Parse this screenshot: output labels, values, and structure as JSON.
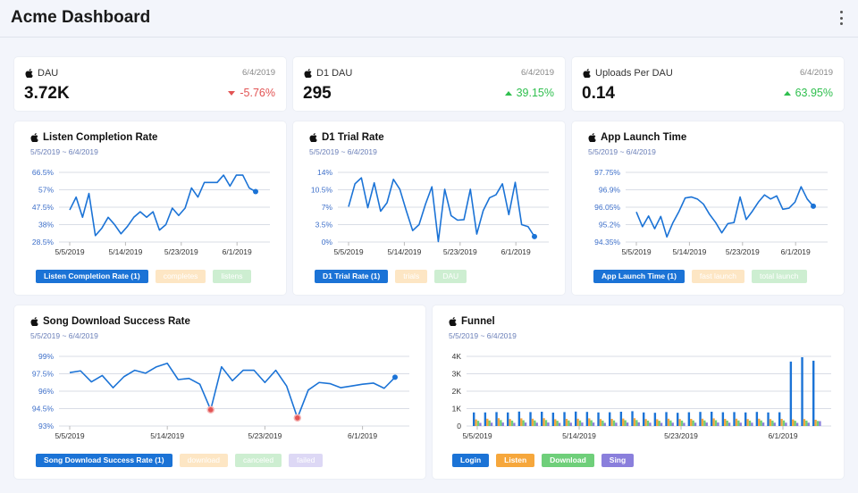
{
  "header": {
    "title": "Acme Dashboard"
  },
  "kpis": [
    {
      "title": "DAU",
      "date": "6/4/2019",
      "value": "3.72K",
      "change": "-5.76%",
      "direction": "down"
    },
    {
      "title": "D1 DAU",
      "date": "6/4/2019",
      "value": "295",
      "change": "39.15%",
      "direction": "up"
    },
    {
      "title": "Uploads Per DAU",
      "date": "6/4/2019",
      "value": "0.14",
      "change": "63.95%",
      "direction": "up"
    }
  ],
  "colors": {
    "blue": "#1b73d6",
    "red": "#e25454",
    "green": "#2fbf4e",
    "orange": "#f6a73c",
    "lightgreen": "#6fcf7a",
    "purple": "#8a7fdc"
  },
  "charts": {
    "listen": {
      "title": "Listen Completion Rate",
      "range": "5/5/2019 ~ 6/4/2019",
      "legend": [
        "Listen Completion Rate (1)",
        "completes",
        "listens"
      ]
    },
    "trial": {
      "title": "D1 Trial Rate",
      "range": "5/5/2019 ~ 6/4/2019",
      "legend": [
        "D1 Trial Rate (1)",
        "trials",
        "DAU"
      ]
    },
    "launch": {
      "title": "App Launch Time",
      "range": "5/5/2019 ~ 6/4/2019",
      "legend": [
        "App Launch Time (1)",
        "fast launch",
        "total launch"
      ]
    },
    "song": {
      "title": "Song Download Success Rate",
      "range": "5/5/2019 ~ 6/4/2019",
      "legend": [
        "Song Download Success Rate (1)",
        "download",
        "canceled",
        "failed"
      ]
    },
    "funnel": {
      "title": "Funnel",
      "range": "5/5/2019 ~ 6/4/2019",
      "legend": [
        "Login",
        "Listen",
        "Download",
        "Sing"
      ]
    }
  },
  "chart_data": [
    {
      "type": "line",
      "title": "Listen Completion Rate",
      "x_ticks": [
        "5/5/2019",
        "5/14/2019",
        "5/23/2019",
        "6/1/2019"
      ],
      "y_ticks": [
        "66.5%",
        "57%",
        "47.5%",
        "38%",
        "28.5%"
      ],
      "ylim": [
        28.5,
        66.5
      ],
      "series": [
        {
          "name": "Listen Completion Rate (1)",
          "values": [
            46,
            53,
            42,
            55,
            32,
            36,
            42,
            38,
            33,
            37,
            42,
            45,
            42,
            45,
            35,
            38,
            47,
            43,
            47,
            58,
            53,
            61,
            61,
            61,
            65,
            59,
            65,
            65,
            58,
            56
          ]
        }
      ]
    },
    {
      "type": "line",
      "title": "D1 Trial Rate",
      "x_ticks": [
        "5/5/2019",
        "5/14/2019",
        "5/23/2019",
        "6/1/2019"
      ],
      "y_ticks": [
        "14%",
        "10.5%",
        "7%",
        "3.5%",
        "0%"
      ],
      "ylim": [
        0,
        14
      ],
      "series": [
        {
          "name": "D1 Trial Rate (1)",
          "values": [
            7.1,
            11.7,
            12.9,
            6.9,
            11.9,
            6.2,
            7.9,
            12.6,
            10.6,
            6.3,
            2.3,
            3.5,
            7.6,
            11.1,
            0.1,
            10.6,
            5.3,
            4.4,
            4.5,
            10.6,
            1.6,
            6.3,
            8.9,
            9.5,
            11.7,
            5.5,
            12.0,
            3.5,
            3.1,
            1.1
          ]
        }
      ]
    },
    {
      "type": "line",
      "title": "App Launch Time",
      "x_ticks": [
        "5/5/2019",
        "5/14/2019",
        "5/23/2019",
        "6/1/2019"
      ],
      "y_ticks": [
        "97.75%",
        "96.9%",
        "96.05%",
        "95.2%",
        "94.35%"
      ],
      "ylim": [
        94.35,
        97.75
      ],
      "series": [
        {
          "name": "App Launch Time (1)",
          "values": [
            95.82,
            95.1,
            95.62,
            95.0,
            95.6,
            94.6,
            95.3,
            95.85,
            96.5,
            96.55,
            96.45,
            96.2,
            95.7,
            95.3,
            94.8,
            95.25,
            95.3,
            96.55,
            95.45,
            95.85,
            96.3,
            96.65,
            96.45,
            96.6,
            95.95,
            96.0,
            96.3,
            97.05,
            96.45,
            96.1
          ]
        }
      ]
    },
    {
      "type": "line",
      "title": "Song Download Success Rate",
      "x_ticks": [
        "5/5/2019",
        "5/14/2019",
        "5/23/2019",
        "6/1/2019"
      ],
      "y_ticks": [
        "99%",
        "97.5%",
        "96%",
        "94.5%",
        "93%"
      ],
      "ylim": [
        93,
        99
      ],
      "series": [
        {
          "name": "Song Download Success Rate (1)",
          "values": [
            97.6,
            97.75,
            96.8,
            97.35,
            96.3,
            97.25,
            97.8,
            97.55,
            98.1,
            98.4,
            97.0,
            97.1,
            96.6,
            94.4,
            98.1,
            96.9,
            97.8,
            97.8,
            96.75,
            97.8,
            96.45,
            93.7,
            96.1,
            96.75,
            96.65,
            96.3,
            96.45,
            96.6,
            96.7,
            96.25,
            97.2
          ]
        }
      ]
    },
    {
      "type": "bar",
      "title": "Funnel",
      "x_ticks": [
        "5/5/2019",
        "5/14/2019",
        "5/23/2019",
        "6/1/2019"
      ],
      "y_ticks": [
        "4K",
        "3K",
        "2K",
        "1K",
        "0"
      ],
      "ylim": [
        0,
        4000
      ],
      "series": [
        {
          "name": "Login",
          "values": [
            780,
            780,
            800,
            780,
            830,
            800,
            820,
            770,
            800,
            830,
            810,
            780,
            790,
            820,
            850,
            780,
            760,
            800,
            760,
            790,
            810,
            820,
            790,
            800,
            780,
            810,
            780,
            790,
            3700,
            3950,
            3750
          ]
        },
        {
          "name": "Listen",
          "values": [
            380,
            420,
            450,
            400,
            440,
            420,
            450,
            390,
            410,
            420,
            440,
            400,
            410,
            430,
            450,
            400,
            390,
            420,
            400,
            410,
            420,
            440,
            410,
            420,
            400,
            420,
            400,
            410,
            380,
            400,
            360
          ]
        },
        {
          "name": "Download",
          "values": [
            300,
            320,
            340,
            310,
            330,
            320,
            340,
            300,
            320,
            320,
            330,
            310,
            320,
            330,
            340,
            310,
            300,
            320,
            310,
            320,
            320,
            330,
            310,
            320,
            310,
            320,
            310,
            320,
            300,
            310,
            290
          ]
        },
        {
          "name": "Sing",
          "values": [
            180,
            190,
            200,
            180,
            200,
            190,
            200,
            180,
            190,
            200,
            200,
            180,
            190,
            200,
            210,
            190,
            180,
            190,
            180,
            190,
            200,
            200,
            190,
            190,
            190,
            200,
            190,
            190,
            180,
            190,
            280
          ]
        }
      ]
    }
  ]
}
